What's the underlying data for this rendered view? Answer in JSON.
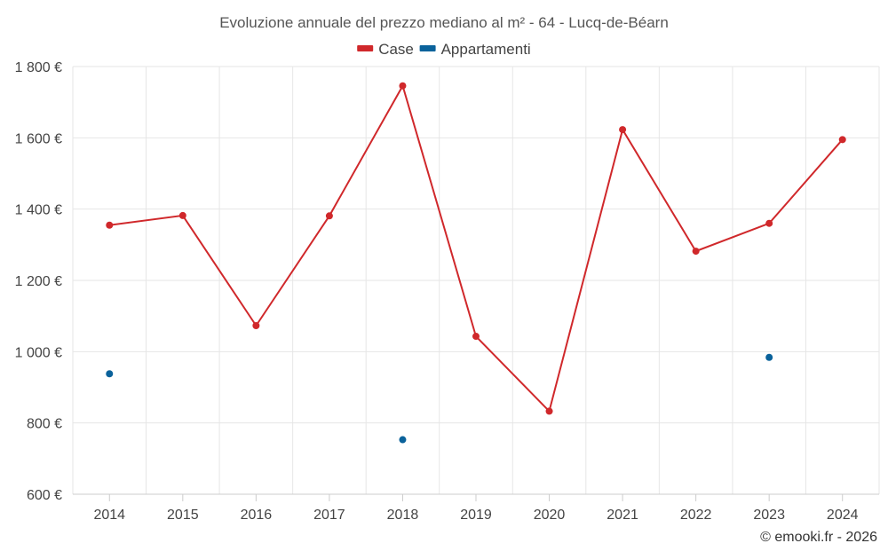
{
  "chart_data": {
    "type": "line",
    "title": "Evoluzione annuale del prezzo mediano al m² - 64 - Lucq-de-Béarn",
    "x": [
      "2014",
      "2015",
      "2016",
      "2017",
      "2018",
      "2019",
      "2020",
      "2021",
      "2022",
      "2023",
      "2024"
    ],
    "ylim": [
      600,
      1800
    ],
    "yticks": [
      600,
      800,
      1000,
      1200,
      1400,
      1600,
      1800
    ],
    "ytick_labels": [
      "600 €",
      "800 €",
      "1 000 €",
      "1 200 €",
      "1 400 €",
      "1 600 €",
      "1 800 €"
    ],
    "grid": true,
    "legend_position": "top-center",
    "series": [
      {
        "name": "Case",
        "color": "#d0282b",
        "line": true,
        "values": [
          1355,
          1382,
          1073,
          1381,
          1746,
          1043,
          833,
          1623,
          1282,
          1360,
          1595
        ]
      },
      {
        "name": "Appartamenti",
        "color": "#0a629b",
        "line": false,
        "values": [
          938,
          null,
          null,
          null,
          753,
          null,
          null,
          null,
          null,
          984,
          null
        ]
      }
    ],
    "credit": "© emooki.fr - 2026"
  }
}
